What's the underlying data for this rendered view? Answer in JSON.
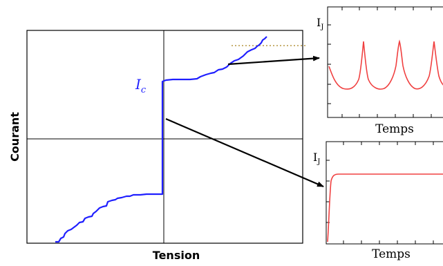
{
  "main_plot": {
    "x_label": "Tension",
    "y_label": "Courant",
    "critical_current_label": "I",
    "critical_current_subscript": "c",
    "curve_color": "#1f1fff",
    "threshold_line_color": "#c8b070"
  },
  "top_inset": {
    "y_label": "I",
    "y_label_subscript": "J",
    "x_label": "Temps",
    "curve": "periodic-spikes",
    "curve_color": "#f04040"
  },
  "bottom_inset": {
    "y_label": "I",
    "y_label_subscript": "J",
    "x_label": "Temps",
    "curve": "step-to-constant",
    "curve_color": "#f04040"
  },
  "arrow_color": "#000000"
}
